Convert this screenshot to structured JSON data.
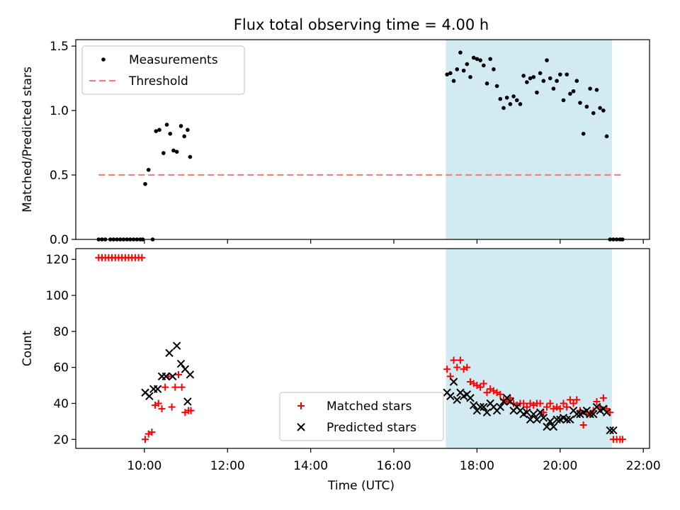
{
  "figure": {
    "title": "Flux total observing time = 4.00 h",
    "xlabel": "Time (UTC)",
    "xticks": [
      {
        "h": 10,
        "label": "10:00"
      },
      {
        "h": 12,
        "label": "12:00"
      },
      {
        "h": 14,
        "label": "14:00"
      },
      {
        "h": 16,
        "label": "16:00"
      },
      {
        "h": 18,
        "label": "18:00"
      },
      {
        "h": 20,
        "label": "20:00"
      },
      {
        "h": 22,
        "label": "22:00"
      }
    ],
    "xlim": [
      8.35,
      22.15
    ],
    "shaded_interval": {
      "start": 17.25,
      "end": 21.25,
      "color": "#add8e6"
    }
  },
  "chart_data": [
    {
      "type": "scatter",
      "ylabel": "Matched/Predicted stars",
      "ylim": [
        0,
        1.55
      ],
      "yticks": [
        {
          "v": 0,
          "label": "0.0"
        },
        {
          "v": 0.5,
          "label": "0.5"
        },
        {
          "v": 1.0,
          "label": "1.0"
        },
        {
          "v": 1.5,
          "label": "1.5"
        }
      ],
      "legend": {
        "location": "upper-left",
        "entries": [
          "Measurements",
          "Threshold"
        ]
      },
      "threshold": {
        "name": "Threshold",
        "value": 0.5,
        "x_range": [
          8.9,
          21.5
        ],
        "color": "#f08080"
      },
      "series": [
        {
          "name": "Measurements",
          "color": "#000000",
          "x": [
            8.9,
            8.98,
            9.06,
            9.18,
            9.26,
            9.34,
            9.42,
            9.5,
            9.58,
            9.66,
            9.74,
            9.82,
            9.9,
            9.96,
            10.02,
            10.1,
            10.2,
            10.28,
            10.36,
            10.46,
            10.54,
            10.62,
            10.7,
            10.78,
            10.88,
            10.96,
            11.04,
            11.1,
            17.28,
            17.36,
            17.44,
            17.52,
            17.6,
            17.68,
            17.76,
            17.84,
            17.92,
            18.0,
            18.08,
            18.16,
            18.24,
            18.32,
            18.4,
            18.48,
            18.56,
            18.64,
            18.72,
            18.8,
            18.88,
            18.96,
            19.04,
            19.12,
            19.2,
            19.28,
            19.36,
            19.44,
            19.52,
            19.6,
            19.68,
            19.76,
            19.84,
            19.92,
            20.0,
            20.08,
            20.16,
            20.24,
            20.32,
            20.4,
            20.48,
            20.56,
            20.64,
            20.72,
            20.8,
            20.88,
            20.96,
            21.04,
            21.12,
            21.2,
            21.28,
            21.36,
            21.44,
            21.5
          ],
          "y": [
            0,
            0,
            0,
            0,
            0,
            0,
            0,
            0,
            0,
            0,
            0,
            0,
            0,
            0,
            0.43,
            0.54,
            0,
            0.84,
            0.85,
            0.67,
            0.89,
            0.82,
            0.69,
            0.68,
            0.88,
            0.8,
            0.85,
            0.64,
            1.28,
            1.29,
            1.23,
            1.32,
            1.45,
            1.31,
            1.36,
            1.26,
            1.41,
            1.4,
            1.39,
            1.35,
            1.21,
            1.4,
            1.32,
            1.19,
            1.09,
            1.02,
            1.1,
            1.05,
            1.11,
            1.08,
            1.05,
            1.27,
            1.22,
            1.25,
            1.26,
            1.14,
            1.29,
            1.23,
            1.39,
            1.25,
            1.17,
            1.23,
            1.28,
            1.08,
            1.28,
            1.13,
            1.15,
            1.23,
            1.06,
            0.82,
            1.03,
            1.17,
            0.98,
            1.16,
            1.02,
            1.0,
            0.8,
            0,
            0,
            0,
            0,
            0
          ]
        }
      ]
    },
    {
      "type": "scatter",
      "ylabel": "Count",
      "ylim": [
        15,
        126
      ],
      "yticks": [
        {
          "v": 20,
          "label": "20"
        },
        {
          "v": 40,
          "label": "40"
        },
        {
          "v": 60,
          "label": "60"
        },
        {
          "v": 80,
          "label": "80"
        },
        {
          "v": 100,
          "label": "100"
        },
        {
          "v": 120,
          "label": "120"
        }
      ],
      "legend": {
        "location": "lower-center",
        "entries": [
          "Matched stars",
          "Predicted stars"
        ]
      },
      "series": [
        {
          "name": "Matched stars",
          "marker": "plus",
          "color": "#ff0000",
          "x": [
            8.9,
            8.98,
            9.06,
            9.14,
            9.22,
            9.3,
            9.38,
            9.46,
            9.54,
            9.62,
            9.7,
            9.78,
            9.86,
            9.94,
            10.02,
            10.1,
            10.18,
            10.26,
            10.34,
            10.42,
            10.5,
            10.58,
            10.66,
            10.74,
            10.82,
            10.9,
            10.98,
            11.06,
            11.12,
            17.28,
            17.36,
            17.44,
            17.52,
            17.6,
            17.68,
            17.76,
            17.84,
            17.92,
            18.0,
            18.08,
            18.16,
            18.24,
            18.32,
            18.4,
            18.48,
            18.56,
            18.64,
            18.72,
            18.8,
            18.88,
            18.96,
            19.04,
            19.12,
            19.2,
            19.28,
            19.36,
            19.44,
            19.52,
            19.6,
            19.68,
            19.76,
            19.84,
            19.92,
            20.0,
            20.08,
            20.16,
            20.24,
            20.32,
            20.4,
            20.48,
            20.56,
            20.64,
            20.72,
            20.8,
            20.88,
            20.96,
            21.04,
            21.12,
            21.2,
            21.28,
            21.36,
            21.44,
            21.5
          ],
          "y": [
            121,
            121,
            121,
            121,
            121,
            121,
            121,
            121,
            121,
            121,
            121,
            121,
            121,
            121,
            20,
            23,
            24,
            39,
            40,
            37,
            49,
            55,
            38,
            49,
            56,
            49,
            35,
            36,
            36,
            59,
            55,
            64,
            60,
            64,
            59,
            60,
            52,
            51,
            50,
            49,
            51,
            46,
            48,
            47,
            46,
            45,
            42,
            41,
            43,
            40,
            39,
            40,
            40,
            38,
            40,
            39,
            40,
            40,
            35,
            38,
            40,
            37,
            38,
            37,
            40,
            38,
            42,
            40,
            42,
            36,
            28,
            34,
            34,
            36,
            41,
            38,
            43,
            37,
            35,
            20,
            20,
            20,
            20
          ]
        },
        {
          "name": "Predicted stars",
          "marker": "x",
          "color": "#000000",
          "x": [
            10.02,
            10.12,
            10.22,
            10.32,
            10.42,
            10.52,
            10.6,
            10.68,
            10.78,
            10.88,
            10.98,
            11.04,
            11.1,
            17.28,
            17.36,
            17.44,
            17.52,
            17.6,
            17.68,
            17.76,
            17.84,
            17.92,
            18.0,
            18.08,
            18.16,
            18.24,
            18.32,
            18.4,
            18.48,
            18.56,
            18.64,
            18.72,
            18.8,
            18.88,
            18.96,
            19.04,
            19.12,
            19.2,
            19.28,
            19.36,
            19.44,
            19.52,
            19.6,
            19.68,
            19.76,
            19.84,
            19.92,
            20.0,
            20.08,
            20.16,
            20.24,
            20.32,
            20.4,
            20.48,
            20.56,
            20.64,
            20.72,
            20.8,
            20.88,
            20.96,
            21.04,
            21.12,
            21.2,
            21.28
          ],
          "y": [
            46,
            44,
            48,
            48,
            55,
            55,
            68,
            55,
            72,
            62,
            59,
            41,
            56,
            46,
            44,
            52,
            42,
            46,
            44,
            45,
            43,
            39,
            36,
            38,
            38,
            35,
            40,
            38,
            36,
            38,
            41,
            43,
            41,
            36,
            38,
            36,
            34,
            35,
            31,
            34,
            31,
            35,
            32,
            27,
            30,
            27,
            31,
            31,
            32,
            31,
            31,
            36,
            34,
            34,
            35,
            36,
            34,
            34,
            38,
            36,
            37,
            35,
            25,
            25
          ]
        }
      ]
    }
  ]
}
